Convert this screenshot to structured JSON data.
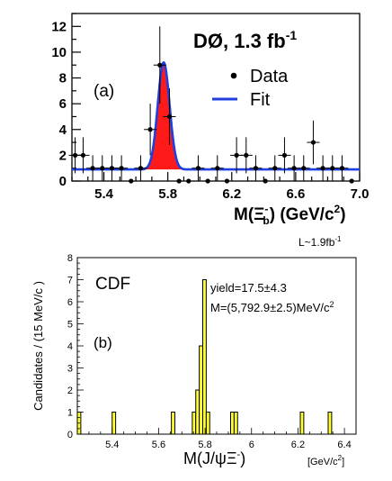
{
  "colors": {
    "data_marker": "#000000",
    "fit_line": "#1f3fe0",
    "signal_fill": "#ff1a1a",
    "histogram_fill": "#ffff33",
    "axis": "#000000"
  },
  "chart_data": [
    {
      "type": "scatter",
      "panel_label": "(a)",
      "experiment_label": "DØ, 1.3 fb",
      "experiment_label_sup": "-1",
      "xlabel_prefix": "M(Ξ",
      "xlabel_sub": "b",
      "xlabel_sup": "-",
      "xlabel_suffix": ") (GeV/c",
      "xlabel_unit_sup": "2",
      "xlabel_close": ")",
      "xlim": [
        5.2,
        7.0
      ],
      "ylim": [
        0,
        13
      ],
      "xticks": [
        "5.4",
        "5.8",
        "6.2",
        "6.6",
        "7.0"
      ],
      "yticks": [
        "0",
        "2",
        "4",
        "6",
        "8",
        "10",
        "12"
      ],
      "legend": {
        "position": "top-right",
        "entries": [
          "Data",
          "Fit"
        ]
      },
      "series": [
        {
          "name": "Data",
          "x": [
            5.22,
            5.27,
            5.33,
            5.39,
            5.45,
            5.51,
            5.57,
            5.63,
            5.69,
            5.75,
            5.81,
            5.87,
            5.93,
            5.99,
            6.05,
            6.11,
            6.17,
            6.23,
            6.29,
            6.35,
            6.41,
            6.47,
            6.53,
            6.59,
            6.65,
            6.71,
            6.77,
            6.83,
            6.89,
            6.95
          ],
          "y": [
            2,
            2,
            1,
            1,
            1,
            1,
            0,
            1,
            4,
            9,
            5,
            0,
            0,
            1,
            0,
            1,
            0,
            2,
            2,
            1,
            0,
            1,
            2,
            1,
            1,
            3,
            1,
            1,
            1,
            0
          ],
          "yerr": [
            1.4,
            1.4,
            1.0,
            1.0,
            1.0,
            1.0,
            0,
            1.0,
            2.0,
            3.0,
            2.2,
            0,
            0,
            1.0,
            0,
            1.0,
            0,
            1.4,
            1.4,
            1.0,
            0,
            1.0,
            1.4,
            1.0,
            1.0,
            1.7,
            1.0,
            1.0,
            1.0,
            0
          ]
        },
        {
          "name": "Fit",
          "type": "line",
          "background": 0.9,
          "peak_mean": 5.774,
          "peak_sigma": 0.037,
          "peak_amplitude": 8.3
        }
      ]
    },
    {
      "type": "bar",
      "panel_label": "(b)",
      "experiment_label": "CDF",
      "luminosity": "L~1.9fb",
      "luminosity_sup": "-1",
      "yield_text": "yield=17.5±4.3",
      "mass_text": "M=(5,792.9±2.5)MeV/c",
      "mass_sup": "2",
      "ylabel": "Candidates / (15 MeV/c )",
      "xlabel": "M(J/ψΞ",
      "xlabel_sup": "-",
      "xlabel_close": ")",
      "x_unit": "[GeV/c",
      "x_unit_sup": "2",
      "x_unit_close": "]",
      "xlim": [
        5.25,
        6.45
      ],
      "ylim": [
        0,
        8
      ],
      "xticks": [
        "5.4",
        "5.6",
        "5.8",
        "6",
        "6.2",
        "6.4"
      ],
      "yticks": [
        "0",
        "1",
        "2",
        "3",
        "4",
        "5",
        "6",
        "7",
        "8"
      ],
      "bin_width_gev": 0.015,
      "bins": [
        {
          "x": 5.25,
          "count": 1
        },
        {
          "x": 5.4,
          "count": 1
        },
        {
          "x": 5.655,
          "count": 1
        },
        {
          "x": 5.745,
          "count": 1
        },
        {
          "x": 5.76,
          "count": 2
        },
        {
          "x": 5.775,
          "count": 4
        },
        {
          "x": 5.79,
          "count": 7
        },
        {
          "x": 5.805,
          "count": 1
        },
        {
          "x": 5.91,
          "count": 1
        },
        {
          "x": 5.925,
          "count": 1
        },
        {
          "x": 6.21,
          "count": 1
        },
        {
          "x": 6.33,
          "count": 1
        }
      ]
    }
  ]
}
